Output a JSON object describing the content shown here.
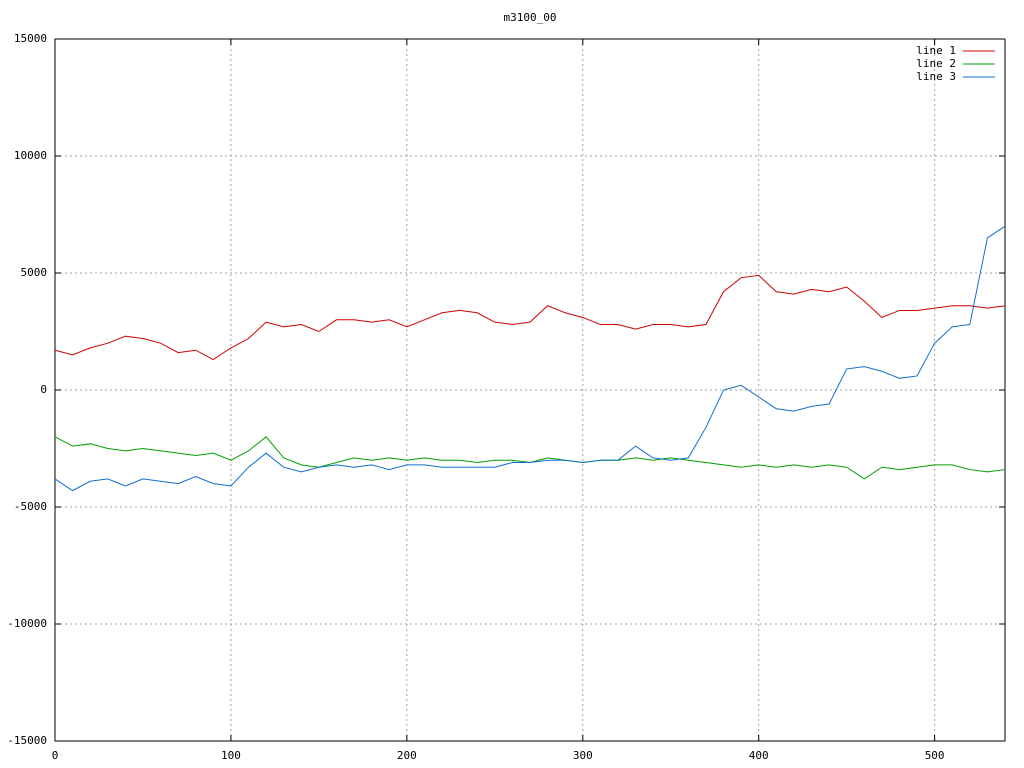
{
  "chart_data": {
    "type": "line",
    "title": "m3100_00",
    "x": [
      0,
      10,
      20,
      30,
      40,
      50,
      60,
      70,
      80,
      90,
      100,
      110,
      120,
      130,
      140,
      150,
      160,
      170,
      180,
      190,
      200,
      210,
      220,
      230,
      240,
      250,
      260,
      270,
      280,
      290,
      300,
      310,
      320,
      330,
      340,
      350,
      360,
      370,
      380,
      390,
      400,
      410,
      420,
      430,
      440,
      450,
      460,
      470,
      480,
      490,
      500,
      510,
      520,
      530,
      540
    ],
    "series": [
      {
        "name": "line 1",
        "color": "#d00000",
        "values": [
          1700,
          1500,
          1800,
          2000,
          2300,
          2200,
          2000,
          1600,
          1700,
          1300,
          1800,
          2200,
          2900,
          2700,
          2800,
          2500,
          3000,
          3000,
          2900,
          3000,
          2700,
          3000,
          3300,
          3400,
          3300,
          2900,
          2800,
          2900,
          3600,
          3300,
          3100,
          2800,
          2800,
          2600,
          2800,
          2800,
          2700,
          2800,
          4200,
          4800,
          4900,
          4200,
          4100,
          4300,
          4200,
          4400,
          3800,
          3100,
          3400,
          3400,
          3500,
          3600,
          3600,
          3500,
          3600
        ]
      },
      {
        "name": "line 2",
        "color": "#00a000",
        "values": [
          -2000,
          -2400,
          -2300,
          -2500,
          -2600,
          -2500,
          -2600,
          -2700,
          -2800,
          -2700,
          -3000,
          -2600,
          -2000,
          -2900,
          -3200,
          -3300,
          -3100,
          -2900,
          -3000,
          -2900,
          -3000,
          -2900,
          -3000,
          -3000,
          -3100,
          -3000,
          -3000,
          -3100,
          -2900,
          -3000,
          -3100,
          -3000,
          -3000,
          -2900,
          -3000,
          -2900,
          -3000,
          -3100,
          -3200,
          -3300,
          -3200,
          -3300,
          -3200,
          -3300,
          -3200,
          -3300,
          -3800,
          -3300,
          -3400,
          -3300,
          -3200,
          -3200,
          -3400,
          -3500,
          -3400
        ]
      },
      {
        "name": "line 3",
        "color": "#1070d0",
        "values": [
          -3800,
          -4300,
          -3900,
          -3800,
          -4100,
          -3800,
          -3900,
          -4000,
          -3700,
          -4000,
          -4100,
          -3300,
          -2700,
          -3300,
          -3500,
          -3300,
          -3200,
          -3300,
          -3200,
          -3400,
          -3200,
          -3200,
          -3300,
          -3300,
          -3300,
          -3300,
          -3100,
          -3100,
          -3000,
          -3000,
          -3100,
          -3000,
          -3000,
          -2400,
          -2900,
          -3000,
          -2900,
          -1600,
          0,
          200,
          -300,
          -800,
          -900,
          -700,
          -600,
          900,
          1000,
          800,
          500,
          600,
          2000,
          2700,
          2800,
          6500,
          7000
        ]
      }
    ],
    "xlim": [
      0,
      540
    ],
    "xticks": [
      0,
      100,
      200,
      300,
      400,
      500
    ],
    "ylim": [
      -15000,
      15000
    ],
    "yticks": [
      -15000,
      -10000,
      -5000,
      0,
      5000,
      10000,
      15000
    ],
    "grid": true,
    "legend": "top-right"
  }
}
